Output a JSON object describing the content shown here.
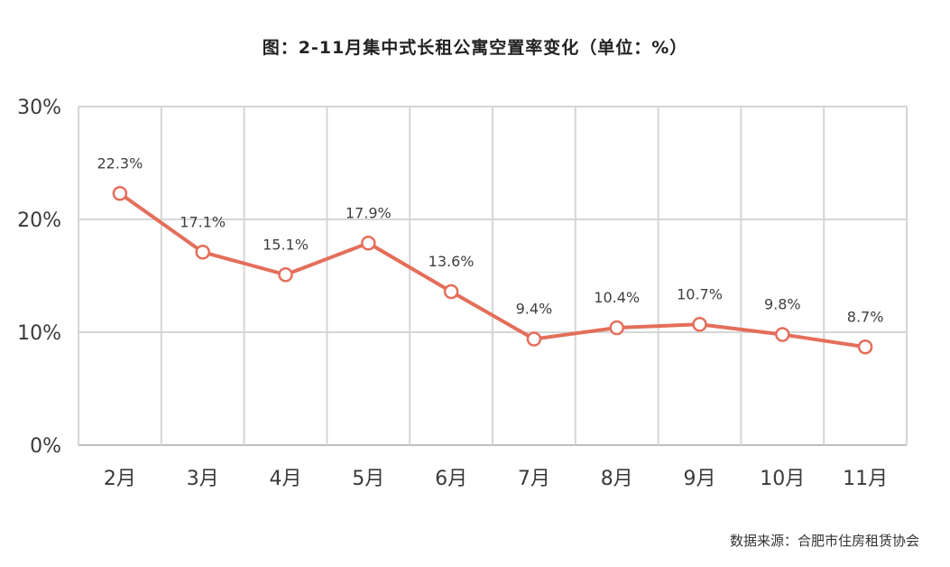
{
  "chart_data": {
    "type": "line",
    "title": "图：2-11月集中式长租公寓空置率变化（单位：%）",
    "categories": [
      "2月",
      "3月",
      "4月",
      "5月",
      "6月",
      "7月",
      "8月",
      "9月",
      "10月",
      "11月"
    ],
    "series": [
      {
        "values": [
          22.3,
          17.1,
          15.1,
          17.9,
          13.6,
          9.4,
          10.4,
          10.7,
          9.8,
          8.7
        ],
        "labels": [
          "22.3%",
          "17.1%",
          "15.1%",
          "17.9%",
          "13.6%",
          "9.4%",
          "10.4%",
          "10.7%",
          "9.8%",
          "8.7%"
        ]
      }
    ],
    "yticks": [
      0,
      10,
      20,
      30
    ],
    "ytick_labels": [
      "0%",
      "10%",
      "20%",
      "30%"
    ],
    "ylim": [
      0,
      30
    ],
    "grid": true,
    "colors": {
      "line": "#e46e5a",
      "marker_fill": "#ffffff",
      "grid": "#d5d5d5"
    }
  },
  "source": "数据来源：合肥市住房租赁协会"
}
